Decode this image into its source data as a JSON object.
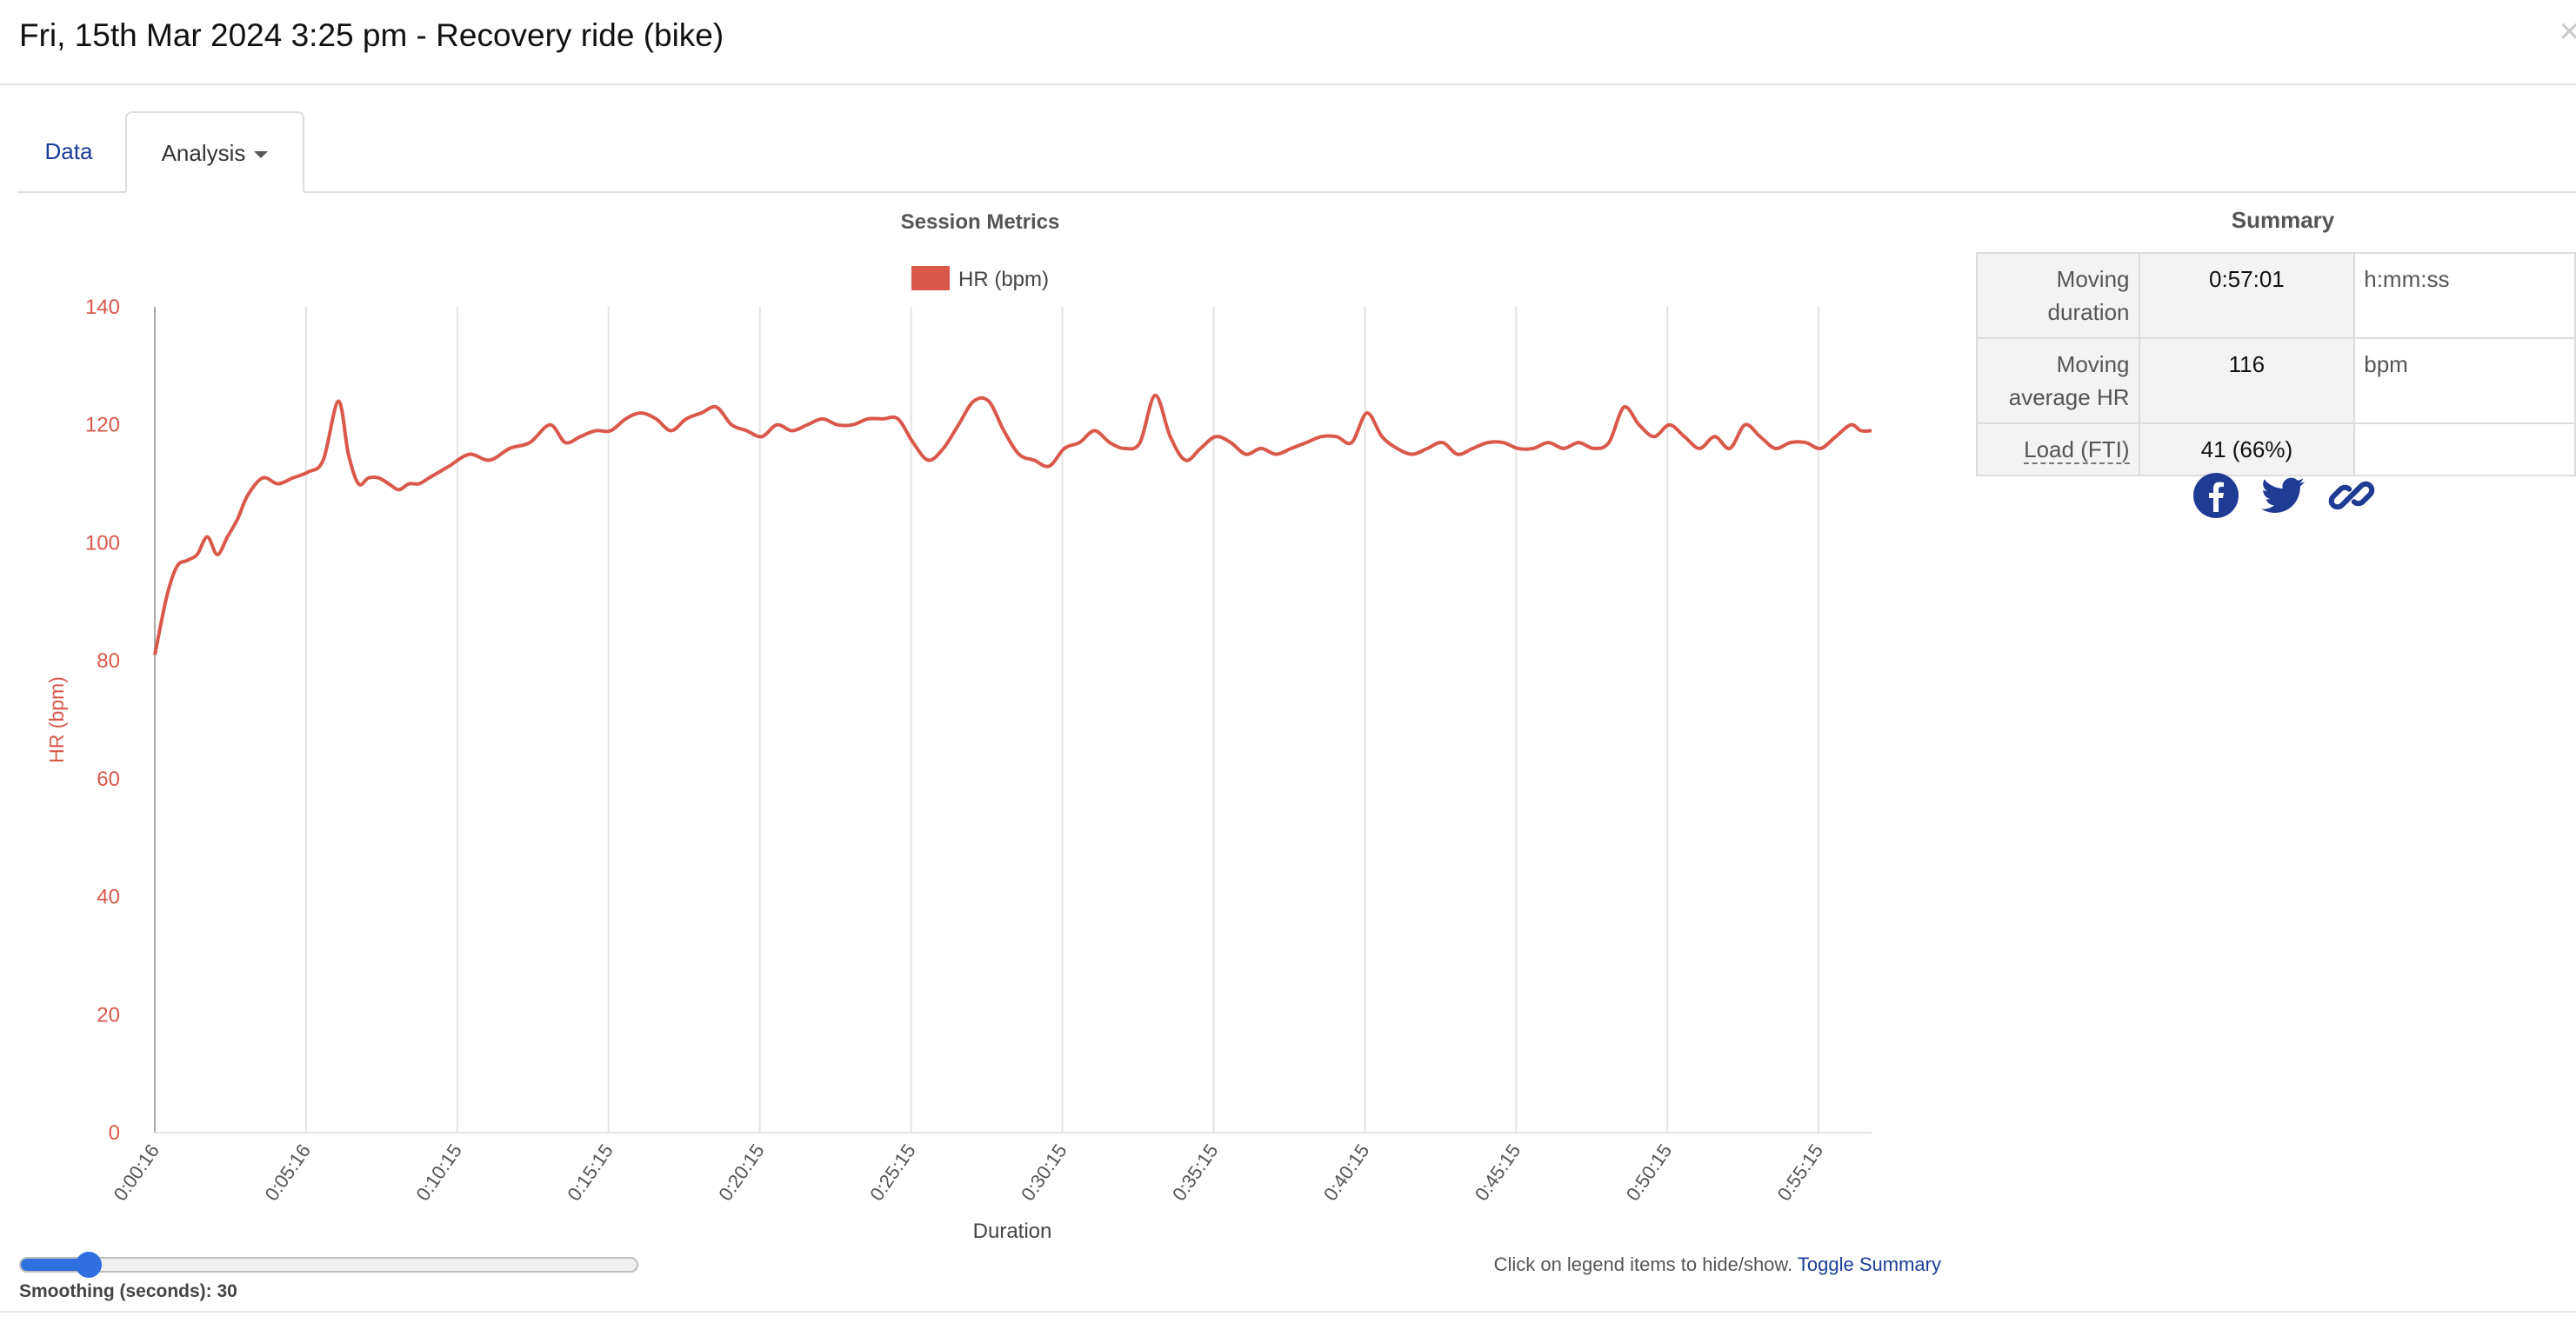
{
  "header": {
    "title": "Fri, 15th Mar 2024 3:25 pm - Recovery ride (bike)",
    "close_glyph": "×"
  },
  "tabs": [
    {
      "label": "Data",
      "active": false
    },
    {
      "label": "Analysis",
      "active": true
    }
  ],
  "chart_data": {
    "type": "line",
    "title": "Session Metrics",
    "xlabel": "Duration",
    "ylabel": "HR (bpm)",
    "ylim": [
      0,
      140
    ],
    "yticks": [
      0,
      20,
      40,
      60,
      80,
      100,
      120,
      140
    ],
    "x_tick_labels": [
      "0:00:16",
      "0:05:16",
      "0:10:15",
      "0:15:15",
      "0:20:15",
      "0:25:15",
      "0:30:15",
      "0:35:15",
      "0:40:15",
      "0:45:15",
      "0:50:15",
      "0:55:15"
    ],
    "x_unit": "seconds",
    "xlim": [
      16,
      3421
    ],
    "grid": "vertical",
    "legend": "top-center",
    "series": [
      {
        "name": "HR (bpm)",
        "color": "#d9584a",
        "x": [
          16,
          40,
          60,
          80,
          100,
          120,
          140,
          160,
          180,
          200,
          230,
          260,
          290,
          320,
          350,
          380,
          400,
          420,
          440,
          460,
          480,
          500,
          520,
          540,
          560,
          580,
          600,
          640,
          680,
          720,
          760,
          800,
          830,
          860,
          890,
          920,
          950,
          980,
          1010,
          1040,
          1070,
          1100,
          1130,
          1160,
          1190,
          1220,
          1250,
          1280,
          1310,
          1340,
          1370,
          1400,
          1430,
          1460,
          1490,
          1520,
          1550,
          1580,
          1610,
          1640,
          1670,
          1700,
          1730,
          1760,
          1790,
          1820,
          1850,
          1880,
          1910,
          1940,
          1970,
          2000,
          2030,
          2060,
          2090,
          2120,
          2150,
          2180,
          2210,
          2240,
          2270,
          2300,
          2330,
          2360,
          2390,
          2420,
          2450,
          2480,
          2510,
          2540,
          2570,
          2600,
          2630,
          2660,
          2690,
          2720,
          2750,
          2780,
          2810,
          2840,
          2870,
          2900,
          2930,
          2960,
          2990,
          3020,
          3050,
          3080,
          3110,
          3140,
          3170,
          3200,
          3230,
          3260,
          3290,
          3320,
          3350,
          3380,
          3400,
          3421
        ],
        "values": [
          81,
          91,
          96,
          97,
          98,
          101,
          98,
          101,
          104,
          108,
          111,
          110,
          111,
          112,
          114,
          124,
          115,
          110,
          111,
          111,
          110,
          109,
          110,
          110,
          111,
          112,
          113,
          115,
          114,
          116,
          117,
          120,
          117,
          118,
          119,
          119,
          121,
          122,
          121,
          119,
          121,
          122,
          123,
          120,
          119,
          118,
          120,
          119,
          120,
          121,
          120,
          120,
          121,
          121,
          121,
          117,
          114,
          116,
          120,
          124,
          124,
          119,
          115,
          114,
          113,
          116,
          117,
          119,
          117,
          116,
          117,
          125,
          118,
          114,
          116,
          118,
          117,
          115,
          116,
          115,
          116,
          117,
          118,
          118,
          117,
          122,
          118,
          116,
          115,
          116,
          117,
          115,
          116,
          117,
          117,
          116,
          116,
          117,
          116,
          117,
          116,
          117,
          123,
          120,
          118,
          120,
          118,
          116,
          118,
          116,
          120,
          118,
          116,
          117,
          117,
          116,
          118,
          120,
          119,
          119
        ]
      }
    ]
  },
  "summary": {
    "title": "Summary",
    "rows": [
      {
        "label": "Moving duration",
        "value": "0:57:01",
        "unit": "h:mm:ss"
      },
      {
        "label": "Moving average HR",
        "value": "116",
        "unit": "bpm"
      },
      {
        "label": "Load (FTI)",
        "value": "41 (66%)",
        "unit": ""
      }
    ]
  },
  "share": {
    "icons": [
      "facebook-icon",
      "twitter-icon",
      "link-icon"
    ],
    "color": "#1f3b93"
  },
  "smoothing": {
    "label": "Smoothing (seconds): 30",
    "value": 30,
    "fraction": 0.11
  },
  "hint": {
    "text": "Click on legend items to hide/show.",
    "link_label": "Toggle Summary"
  },
  "colors": {
    "accent": "#d9584a",
    "link": "#1a3d99",
    "slider": "#2f6fe0"
  }
}
